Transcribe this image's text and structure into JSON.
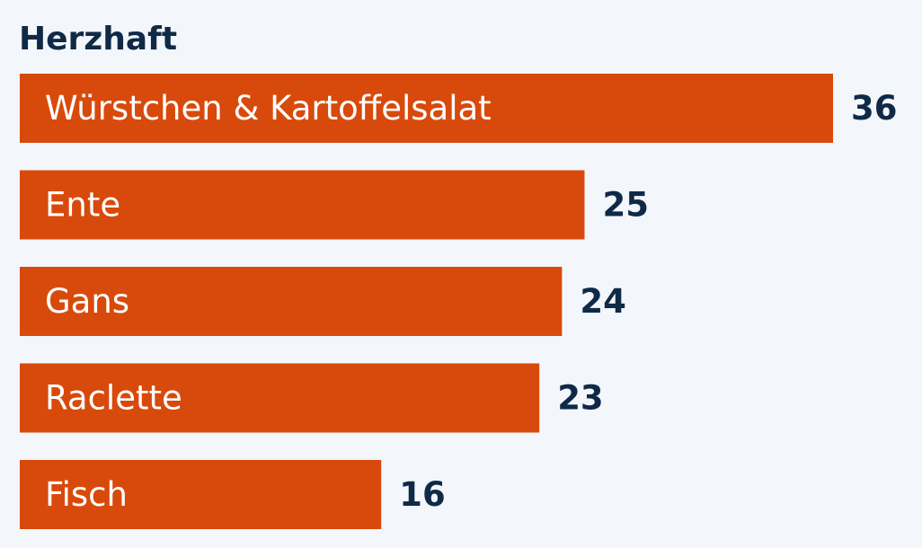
{
  "chart_data": {
    "type": "bar",
    "orientation": "horizontal",
    "title": "Herzhaft",
    "categories": [
      "Würstchen & Kartoffelsalat",
      "Ente",
      "Gans",
      "Raclette",
      "Fisch"
    ],
    "values": [
      36,
      25,
      24,
      23,
      16
    ],
    "xlim": [
      0,
      36
    ],
    "grid": false,
    "colors": {
      "bar": "#d84a0b",
      "text": "#0f2a47",
      "label": "#ffffff",
      "background": "#f3f6fa"
    }
  }
}
